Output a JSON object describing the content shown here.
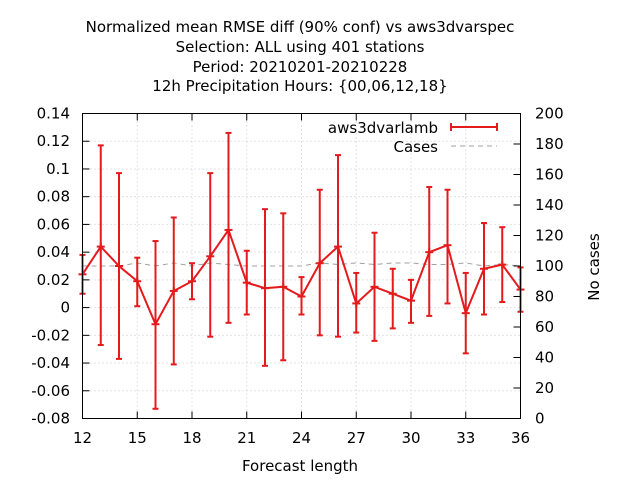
{
  "chart_data": {
    "type": "line",
    "title_lines": [
      "Normalized mean RMSE diff (90% conf) vs aws3dvarspec",
      "Selection: ALL using   401 stations",
      "Period: 20210201-20210228",
      "12h Precipitation   Hours: {00,06,12,18}"
    ],
    "xlabel": "Forecast length",
    "ylabel": "",
    "y2label": "No cases",
    "xlim": [
      12,
      36
    ],
    "ylim": [
      -0.08,
      0.14
    ],
    "y2lim": [
      0,
      200
    ],
    "xticks": [
      "12",
      "15",
      "18",
      "21",
      "24",
      "27",
      "30",
      "33",
      "36"
    ],
    "yticks": [
      "-0.08",
      "-0.06",
      "-0.04",
      "-0.02",
      "0",
      "0.02",
      "0.04",
      "0.06",
      "0.08",
      "0.1",
      "0.12",
      "0.14"
    ],
    "y2ticks": [
      "0",
      "20",
      "40",
      "60",
      "80",
      "100",
      "120",
      "140",
      "160",
      "180",
      "200"
    ],
    "legend_position": "top-right",
    "colors": {
      "series": "#e41a1c",
      "cases": "#a0a0a0"
    },
    "series": [
      {
        "name": "aws3dvarlamb",
        "axis": "left",
        "style": "line-errorbars",
        "x": [
          12,
          13,
          14,
          15,
          16,
          17,
          18,
          19,
          20,
          21,
          22,
          23,
          24,
          25,
          26,
          27,
          28,
          29,
          30,
          31,
          32,
          33,
          34,
          35,
          36
        ],
        "y": [
          0.024,
          0.044,
          0.03,
          0.019,
          -0.012,
          0.012,
          0.019,
          0.037,
          0.056,
          0.018,
          0.014,
          0.015,
          0.008,
          0.032,
          0.044,
          0.003,
          0.015,
          0.01,
          0.005,
          0.04,
          0.045,
          -0.004,
          0.028,
          0.031,
          0.013
        ],
        "err_low": [
          0.01,
          -0.027,
          -0.037,
          0.001,
          -0.073,
          -0.041,
          0.006,
          -0.021,
          -0.011,
          -0.005,
          -0.042,
          -0.038,
          -0.005,
          -0.02,
          -0.021,
          -0.018,
          -0.024,
          -0.015,
          -0.011,
          -0.006,
          0.003,
          -0.033,
          -0.005,
          0.004,
          -0.003
        ],
        "err_high": [
          0.038,
          0.117,
          0.097,
          0.036,
          0.048,
          0.065,
          0.032,
          0.097,
          0.126,
          0.041,
          0.071,
          0.068,
          0.022,
          0.085,
          0.11,
          0.025,
          0.054,
          0.028,
          0.02,
          0.087,
          0.085,
          0.025,
          0.061,
          0.058,
          0.029
        ]
      },
      {
        "name": "Cases",
        "axis": "right",
        "style": "dashed",
        "x": [
          12,
          13,
          14,
          15,
          16,
          17,
          18,
          19,
          20,
          21,
          22,
          23,
          24,
          25,
          26,
          27,
          28,
          29,
          30,
          31,
          32,
          33,
          34,
          35,
          36
        ],
        "y": [
          100,
          100,
          100,
          102,
          100,
          102,
          100,
          102,
          101,
          100,
          100,
          100,
          100,
          102,
          101,
          102,
          101,
          102,
          102,
          101,
          101,
          102,
          100,
          101,
          100
        ]
      }
    ]
  }
}
